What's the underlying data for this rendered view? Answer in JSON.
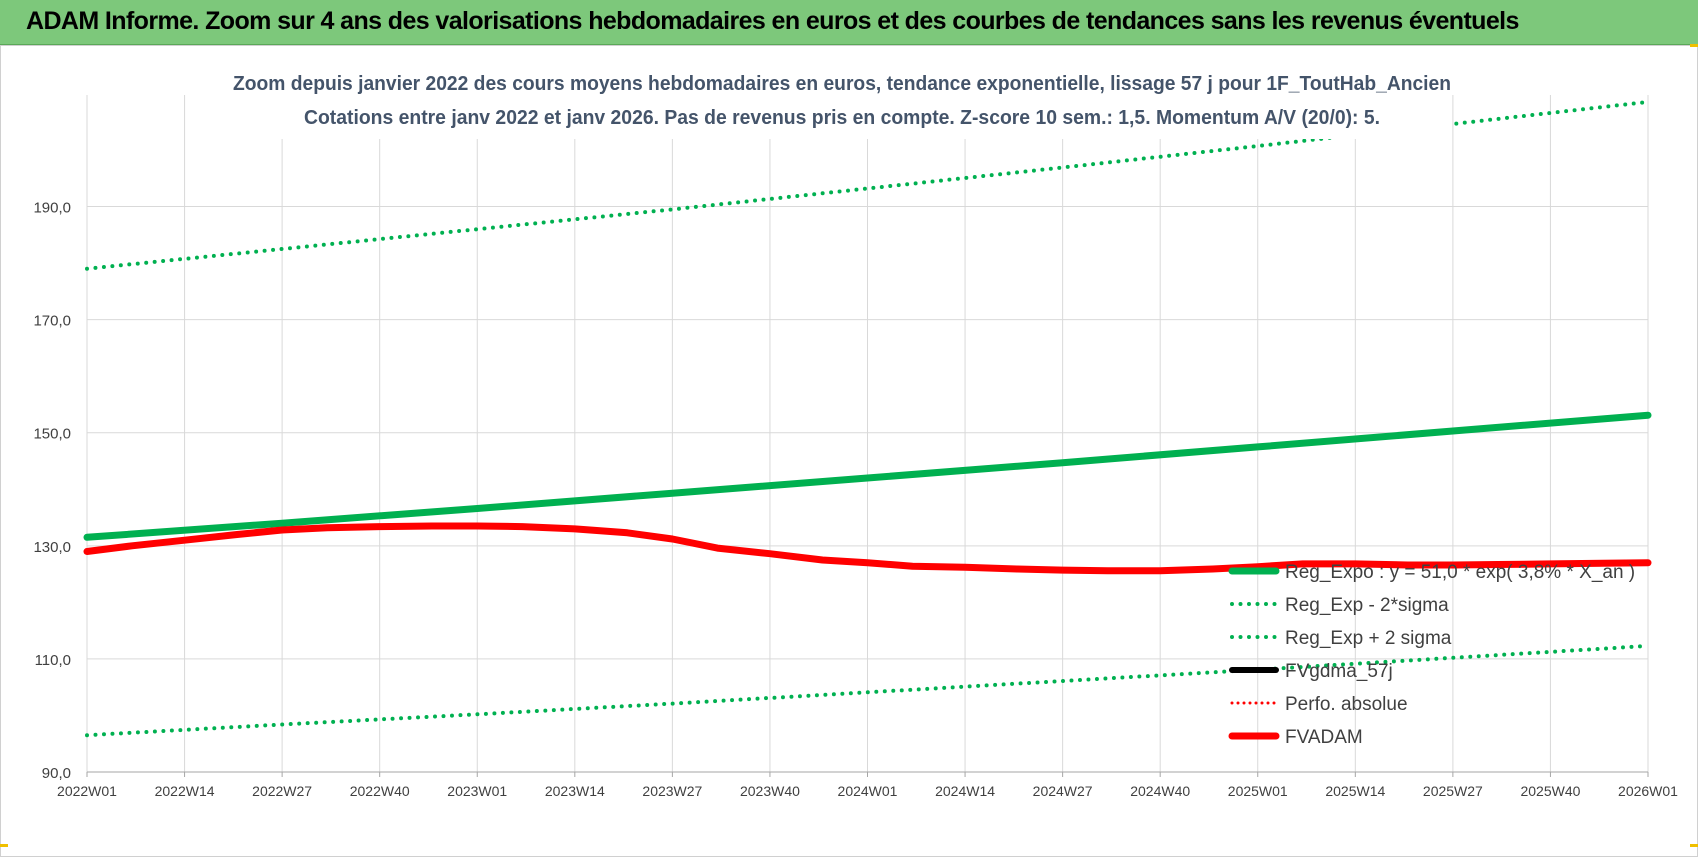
{
  "banner": {
    "title": "ADAM Informe. Zoom sur 4 ans des valorisations hebdomadaires en euros et des courbes de tendances sans les revenus éventuels"
  },
  "colors": {
    "banner_bg": "#7dc87b",
    "trend_green": "#00b050",
    "fvgdma_black": "#000000",
    "fvadam_red": "#ff0000",
    "perfo_red": "#ff0000",
    "title_text": "#44546a",
    "grid": "#d9d9d9"
  },
  "chart_data": {
    "type": "line",
    "title_line1": "Zoom depuis janvier 2022 des cours moyens hebdomadaires en euros, tendance exponentielle, lissage 57 j pour 1F_ToutHab_Ancien",
    "title_line2": "Cotations entre janv 2022 et janv 2026. Pas de revenus pris en compte. Z-score 10 sem.: 1,5. Momentum A/V (20/0): 5.",
    "x_tick_labels": [
      "2022W01",
      "2022W14",
      "2022W27",
      "2022W40",
      "2023W01",
      "2023W14",
      "2023W27",
      "2023W40",
      "2024W01",
      "2024W14",
      "2024W27",
      "2024W40",
      "2025W01",
      "2025W14",
      "2025W27",
      "2025W40",
      "2026W01"
    ],
    "x_range": [
      0,
      208
    ],
    "y_ticks": [
      90,
      110,
      130,
      150,
      170,
      190
    ],
    "y_tick_labels": [
      "90,0",
      "110,0",
      "130,0",
      "150,0",
      "170,0",
      "190,0"
    ],
    "ylim": [
      90,
      200
    ],
    "grid": true,
    "legend_position": "right",
    "series": [
      {
        "name": "Reg_Expo : y = 51,0 * exp( 3,8% *  X_an )",
        "style": "solid-thick",
        "color": "#00b050",
        "x": [
          0,
          26,
          52,
          78,
          104,
          130,
          156,
          182,
          208
        ],
        "y": [
          131.5,
          134.0,
          136.6,
          139.3,
          142.0,
          144.7,
          147.5,
          150.3,
          153.1
        ]
      },
      {
        "name": "Reg_Exp - 2*sigma",
        "style": "dotted",
        "color": "#00b050",
        "x": [
          0,
          26,
          52,
          78,
          104,
          130,
          156,
          182,
          208
        ],
        "y": [
          96.5,
          98.4,
          100.2,
          102.1,
          104.1,
          106.1,
          108.1,
          110.2,
          112.3
        ]
      },
      {
        "name": "Reg_Exp + 2 sigma",
        "style": "dotted",
        "color": "#00b050",
        "x": [
          0,
          26,
          52,
          78,
          104,
          130,
          156,
          182,
          208
        ],
        "y": [
          179.0,
          182.5,
          186.0,
          189.5,
          193.2,
          196.9,
          200.7,
          204.6,
          208.5
        ]
      },
      {
        "name": "FVgdma_57j",
        "style": "solid-medium",
        "color": "#000000",
        "x": [
          0,
          6,
          13,
          20,
          26,
          32,
          39,
          46,
          52,
          58,
          65,
          72,
          78,
          84,
          91,
          98,
          104,
          110,
          117,
          124,
          130,
          136,
          143,
          150,
          156,
          162,
          169,
          176,
          182,
          188,
          195,
          202,
          208
        ],
        "y": [
          129.0,
          130.0,
          131.0,
          132.0,
          132.8,
          133.2,
          133.4,
          133.5,
          133.5,
          133.4,
          133.0,
          132.3,
          131.2,
          129.6,
          128.6,
          127.5,
          127.0,
          126.4,
          126.2,
          125.9,
          125.7,
          125.6,
          125.6,
          125.9,
          126.3,
          126.8,
          126.8,
          126.6,
          126.6,
          126.7,
          126.8,
          126.9,
          127.0
        ]
      },
      {
        "name": "Perfo. absolue",
        "style": "dotted-thin",
        "color": "#ff0000",
        "x": [],
        "y": []
      },
      {
        "name": "FVADAM",
        "style": "solid-thick",
        "color": "#ff0000",
        "x": [
          0,
          6,
          13,
          20,
          26,
          32,
          39,
          46,
          52,
          58,
          65,
          72,
          78,
          84,
          91,
          98,
          104,
          110,
          117,
          124,
          130,
          136,
          143,
          150,
          156,
          162,
          169,
          176,
          182,
          188,
          195,
          202,
          208
        ],
        "y": [
          129.0,
          130.0,
          131.0,
          132.0,
          132.8,
          133.2,
          133.4,
          133.5,
          133.5,
          133.4,
          133.0,
          132.3,
          131.2,
          129.6,
          128.6,
          127.5,
          127.0,
          126.4,
          126.2,
          125.9,
          125.7,
          125.6,
          125.6,
          125.9,
          126.3,
          126.8,
          126.8,
          126.6,
          126.6,
          126.7,
          126.8,
          126.9,
          127.0
        ]
      }
    ]
  }
}
